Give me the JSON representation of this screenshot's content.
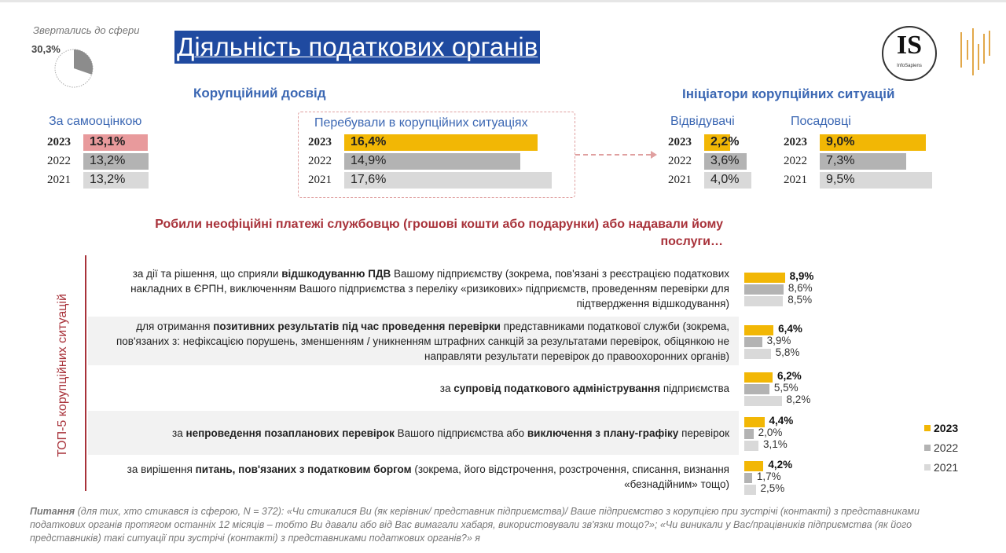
{
  "header": {
    "title": "Діяльність податкових органів",
    "pie_label": "Звертались до сфери",
    "pie_value": "30,3%",
    "pie_percent": 30.3,
    "logo_text": "IS",
    "logo_sub": "InfoSapiens"
  },
  "colors": {
    "y2023_yellow": "#f2b705",
    "y2023_pink": "#e89a9c",
    "y2022": "#b3b3b3",
    "y2021": "#d9d9d9",
    "title_bg": "#1f4aa0",
    "accent_red": "#a8323a",
    "heading_blue": "#3b67b3"
  },
  "chart_data": [
    {
      "type": "bar",
      "title": "Корупційний досвід",
      "subtitle": "За самооцінкою",
      "categories": [
        "2023",
        "2022",
        "2021"
      ],
      "values": [
        13.1,
        13.2,
        13.2
      ],
      "labels": [
        "13,1%",
        "13,2%",
        "13,2%"
      ]
    },
    {
      "type": "bar",
      "subtitle": "Перебували в корупційних ситуаціях",
      "categories": [
        "2023",
        "2022",
        "2021"
      ],
      "values": [
        16.4,
        14.9,
        17.6
      ],
      "labels": [
        "16,4%",
        "14,9%",
        "17,6%"
      ]
    },
    {
      "type": "bar",
      "title": "Ініціатори корупційних ситуацій",
      "subtitle": "Відвідувачі",
      "categories": [
        "2023",
        "2022",
        "2021"
      ],
      "values": [
        2.2,
        3.6,
        4.0
      ],
      "labels": [
        "2,2%",
        "3,6%",
        "4,0%"
      ]
    },
    {
      "type": "bar",
      "subtitle": "Посадовці",
      "categories": [
        "2023",
        "2022",
        "2021"
      ],
      "values": [
        9.0,
        7.3,
        9.5
      ],
      "labels": [
        "9,0%",
        "7,3%",
        "9,5%"
      ]
    },
    {
      "type": "bar",
      "title": "Робили неофіційні платежі службовцю (грошові кошти або подарунки) або надавали йому послуги…",
      "ylabel": "ТОП-5 корупційних ситуацій",
      "legend": [
        "2023",
        "2022",
        "2021"
      ],
      "legend_position": "right",
      "categories": [
        "за дії та рішення, що сприяли <b>відшкодуванню ПДВ</b> Вашому підприємству (зокрема, пов'язані з реєстрацією податкових накладних в ЄРПН, виключенням Вашого підприємства з переліку «ризикових» підприємств, проведенням перевірки для підтвердження відшкодування)",
        "для отримання <b>позитивних результатів під час проведення перевірки</b> представниками податкової служби (зокрема, пов'язаних з: нефіксацією порушень, зменшенням / уникненням штрафних санкцій за результатами перевірок, обіцянкою не направляти результати перевірок до правоохоронних органів)",
        "за <b>супровід податкового адміністрування</b> підприємства",
        "за <b>непроведення позапланових перевірок</b> Вашого підприємства або <b>виключення з плану-графіку</b> перевірок",
        "за вирішення <b>питань, пов'язаних з податковим боргом</b> (зокрема, його відстрочення, розстрочення, списання, визнання «безнадійним» тощо)"
      ],
      "series": [
        {
          "name": "2023",
          "values": [
            8.9,
            6.4,
            6.2,
            4.4,
            4.2
          ],
          "labels": [
            "8,9%",
            "6,4%",
            "6,2%",
            "4,4%",
            "4,2%"
          ]
        },
        {
          "name": "2022",
          "values": [
            8.6,
            3.9,
            5.5,
            2.0,
            1.7
          ],
          "labels": [
            "8,6%",
            "3,9%",
            "5,5%",
            "2,0%",
            "1,7%"
          ]
        },
        {
          "name": "2021",
          "values": [
            8.5,
            5.8,
            8.2,
            3.1,
            2.5
          ],
          "labels": [
            "8,5%",
            "5,8%",
            "8,2%",
            "3,1%",
            "2,5%"
          ]
        }
      ]
    }
  ],
  "footnote": "<b>Питання</b> (для тих, хто стикався із сферою, N = 372): «Чи стикалися Ви (як керівник/ представник підприємства)/ Ваше підприємство з корупцією при зустрічі (контакті) з представниками податкових органів протягом останніх 12 місяців – тобто Ви давали або від Вас вимагали хабаря, використовували зв'язки тощо?»; «Чи виникали у Вас/працівників підприємства (як його представників) такі ситуації при зустрічі (контакті) з представниками  податкових органів?» я"
}
